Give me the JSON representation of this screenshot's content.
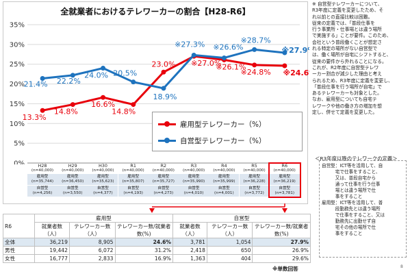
{
  "chart_data": {
    "type": "line",
    "title": "全就業者におけるテレワーカーの割合【H28-R6】",
    "categories": [
      "H28",
      "H29",
      "H30",
      "R1",
      "R2",
      "R3",
      "R4",
      "R5",
      "R6"
    ],
    "y_tick_labels": [
      "0%",
      "5%",
      "10%",
      "15%",
      "20%",
      "25%",
      "30%",
      "35%"
    ],
    "ylim": [
      0,
      35
    ],
    "grid": true,
    "series": [
      {
        "name": "雇用型テレワーカー（%）",
        "color": "#e8000b",
        "values": [
          13.3,
          14.8,
          16.6,
          14.8,
          23.0,
          27.0,
          26.1,
          24.8,
          24.6
        ],
        "labels": [
          "13.3%",
          "14.8%",
          "16.6%",
          "14.8%",
          "23.0%",
          "※27.0%",
          "※26.1%",
          "※24.8%",
          "※24.6%"
        ]
      },
      {
        "name": "自営型テレワーカー（%）",
        "color": "#1e73be",
        "values": [
          21.4,
          22.2,
          24.0,
          20.5,
          18.9,
          27.3,
          26.6,
          28.7,
          27.9
        ],
        "labels": [
          "21.4%",
          "22.2%",
          "24.0%",
          "20.5%",
          "18.9%",
          "※27.3%",
          "※26.6%",
          "※28.7%",
          "※27.9%"
        ]
      }
    ],
    "legend_position": "bottom-right"
  },
  "samples": [
    {
      "year": "H28",
      "n": "(n=40,000)",
      "emp_label": "雇用型",
      "emp_n": "(n=35,744)",
      "self_label": "自営型",
      "self_n": "(n=4,256)"
    },
    {
      "year": "H29",
      "n": "(n=40,000)",
      "emp_label": "雇用型",
      "emp_n": "(n=36,450)",
      "self_label": "自営型",
      "self_n": "(n=3,550)"
    },
    {
      "year": "H30",
      "n": "(n=40,000)",
      "emp_label": "雇用型",
      "emp_n": "(n=35,623)",
      "self_label": "自営型",
      "self_n": "(n=4,377)"
    },
    {
      "year": "R1",
      "n": "(n=40,000)",
      "emp_label": "雇用型",
      "emp_n": "(n=35,807)",
      "self_label": "自営型",
      "self_n": "(n=4,193)"
    },
    {
      "year": "R2",
      "n": "(n=40,000)",
      "emp_label": "雇用型",
      "emp_n": "(n=35,727)",
      "self_label": "自営型",
      "self_n": "(n=4,273)"
    },
    {
      "year": "R3",
      "n": "(n=40,000)",
      "emp_label": "雇用型",
      "emp_n": "(n=35,990)",
      "self_label": "自営型",
      "self_n": "(n=4,010)"
    },
    {
      "year": "R4",
      "n": "(n=40,000)",
      "emp_label": "雇用型",
      "emp_n": "(n=35,999)",
      "self_label": "自営型",
      "self_n": "(n=4,001)"
    },
    {
      "year": "R5",
      "n": "(n=40,000)",
      "emp_label": "雇用型",
      "emp_n": "(n=36,228)",
      "self_label": "自営型",
      "self_n": "(n=3,772)"
    },
    {
      "year": "R6",
      "n": "(n=40,000)",
      "emp_label": "雇用型",
      "emp_n": "(n=36,219)",
      "self_label": "自営型",
      "self_n": "(n=3,781)"
    }
  ],
  "note": {
    "lines": [
      "※ 自営型テレワーカーについて、",
      "R3年度に定義を変更したため、そ",
      "れ以前との直接比較は困難。",
      "従来の定義では、「普段仕事を",
      "行う事業所・仕事場とは違う場所",
      "で実施する」ことが要件。このため、",
      "会社という普段働くことが想定さ",
      "れる特定の場所がない自営型で",
      "は、働く場所が自宅にシフトすると、",
      "従来の要件から外れることになる。",
      "これが、R2年度に自営型テレワ",
      "ーカー割合が減少した理由と考え",
      "られるため、R3年度に定義を変更し、",
      "「普段仕事を行う場所が自宅」で",
      "あるテレワーカーも対象とした。",
      "なお、雇用型についても自宅テ",
      "レワークや他の働き方の増加を想",
      "定し、併せて定義を変更した。"
    ]
  },
  "definition": {
    "title": "＜R3年度以降のテレワークの定義＞",
    "lines": [
      "自営型：ICT等を活用して、自",
      "　　　宅で仕事をすること、",
      "　　　又は、普段自宅から",
      "　　　通って仕事を行う仕事",
      "　　　場とは違う場所で仕",
      "　　　事をすること",
      "雇用型：ICT等を活用して、普",
      "　　　段勤務先とは違う場所",
      "　　　で仕事をすること、又は",
      "　　　勤務先に出勤せず自",
      "　　　宅その他の場所で仕",
      "　　　事をすること"
    ]
  },
  "table": {
    "year_label": "R6",
    "group_emp": "雇用型",
    "group_self": "自営型",
    "col_workers": "就業者数（人）",
    "col_teleworkers": "テレワーカー数（人）",
    "col_ratio": "テレワーカー数/就業者数(%)",
    "rows": [
      {
        "label": "全体",
        "emp_workers": "36,219",
        "emp_tele": "8,905",
        "emp_ratio": "24.6%",
        "self_workers": "3,781",
        "self_tele": "1,054",
        "self_ratio": "27.9%"
      },
      {
        "label": "男性",
        "emp_workers": "19,442",
        "emp_tele": "6,072",
        "emp_ratio": "31.2%",
        "self_workers": "2,418",
        "self_tele": "650",
        "self_ratio": "26.9%"
      },
      {
        "label": "女性",
        "emp_workers": "16,777",
        "emp_tele": "2,833",
        "emp_ratio": "16.9%",
        "self_workers": "1,363",
        "self_tele": "404",
        "self_ratio": "29.6%"
      }
    ],
    "footnote": "※単数回答"
  },
  "page_number": "8"
}
